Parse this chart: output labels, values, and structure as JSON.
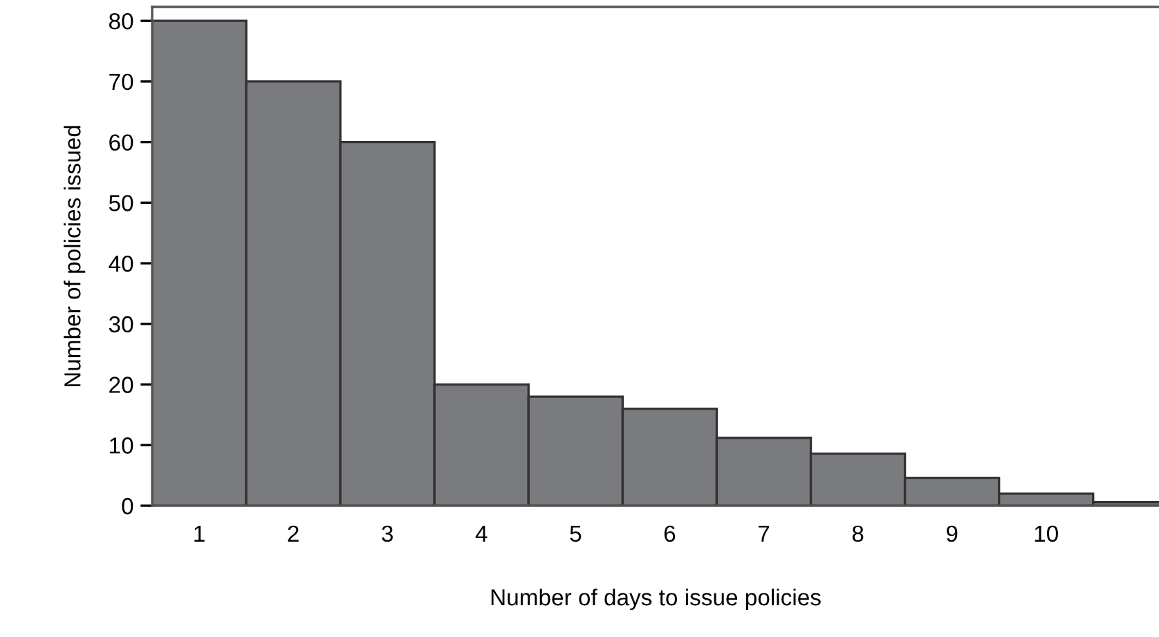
{
  "chart_data": {
    "type": "bar",
    "xlabel": "Number of days to issue policies",
    "ylabel": "Number of policies issued",
    "categories": [
      "1",
      "2",
      "3",
      "4",
      "5",
      "6",
      "7",
      "8",
      "9",
      "10",
      null
    ],
    "values": [
      80,
      70,
      60,
      20,
      18,
      16,
      11.2,
      8.6,
      4.6,
      2,
      0.6
    ],
    "color": "#7a7b7e",
    "ylim": [
      0,
      82.3
    ],
    "yticks": [
      0,
      10,
      20,
      30,
      40,
      50,
      60,
      70,
      80
    ],
    "grid": false
  }
}
